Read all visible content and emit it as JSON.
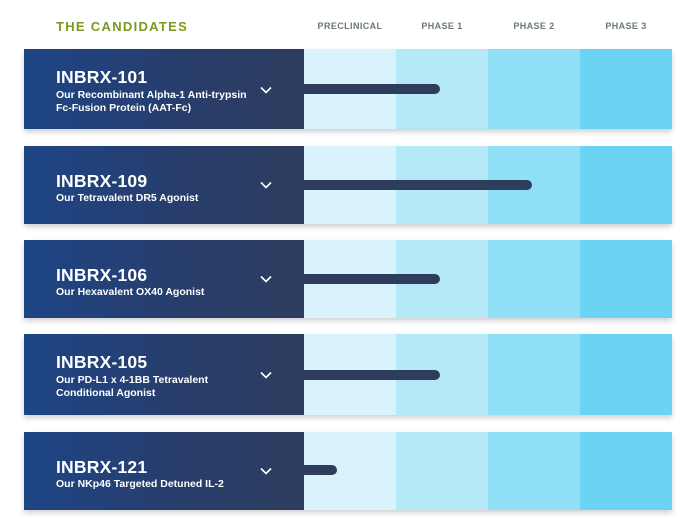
{
  "header": {
    "title": "THE CANDIDATES",
    "phases": [
      "PRECLINICAL",
      "PHASE 1",
      "PHASE 2",
      "PHASE 3"
    ]
  },
  "candidates": [
    {
      "name": "INBRX-101",
      "description": "Our Recombinant Alpha-1 Anti-trypsin Fc-Fusion Protein (AAT-Fc)",
      "progress": 0.37
    },
    {
      "name": "INBRX-109",
      "description": "Our Tetravalent DR5 Agonist",
      "progress": 0.62
    },
    {
      "name": "INBRX-106",
      "description": "Our Hexavalent OX40 Agonist",
      "progress": 0.37
    },
    {
      "name": "INBRX-105",
      "description": "Our PD-L1 x 4-1BB Tetravalent Conditional Agonist",
      "progress": 0.37
    },
    {
      "name": "INBRX-121",
      "description": "Our NKp46 Targeted Detuned IL-2",
      "progress": 0.09
    }
  ],
  "colors": {
    "title": "#7a9a1e",
    "card_dark": "#2d3d5e",
    "progress_bar": "#2e3d5c",
    "stage_1": "#d8f3fb",
    "stage_2": "#b6e9f8",
    "stage_3": "#8fdff6",
    "stage_4": "#6bd4f3"
  },
  "icons": {
    "expand": "chevron-down-icon"
  }
}
